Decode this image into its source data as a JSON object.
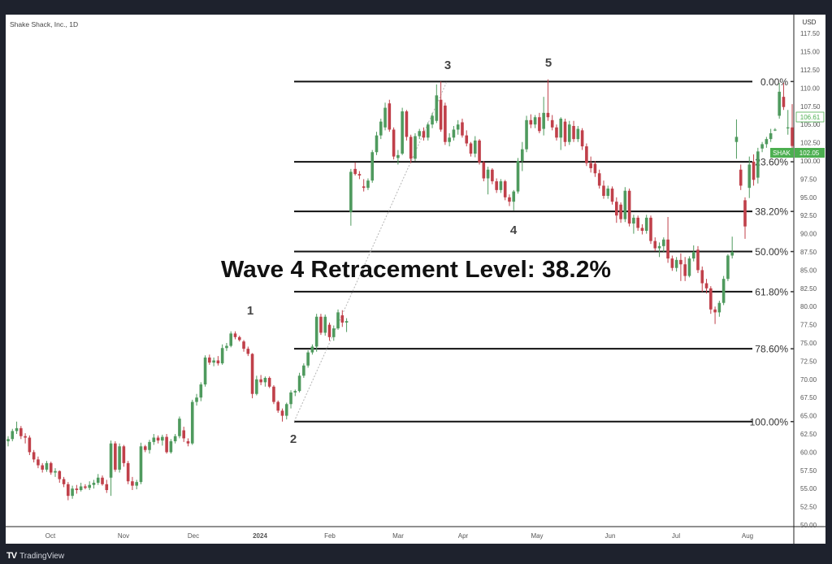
{
  "header": {
    "symbol_title": "Shake Shack, Inc., 1D",
    "currency": "USD"
  },
  "footer": {
    "brand": "TradingView",
    "logo": "TV"
  },
  "chart_data": {
    "type": "candlestick",
    "title": "Shake Shack, Inc., 1D",
    "ylabel": "USD",
    "ylim": [
      50,
      118
    ],
    "grid": false,
    "x_ticks": [
      "Oct",
      "Nov",
      "Dec",
      "2024",
      "Feb",
      "Mar",
      "Apr",
      "May",
      "Jun",
      "Jul",
      "Aug"
    ],
    "y_ticks": [
      "50.00",
      "52.50",
      "55.00",
      "57.50",
      "60.00",
      "62.50",
      "65.00",
      "67.50",
      "70.00",
      "72.50",
      "75.00",
      "77.50",
      "80.00",
      "82.50",
      "85.00",
      "87.50",
      "90.00",
      "92.50",
      "95.00",
      "97.50",
      "100.00",
      "102.50",
      "105.00",
      "107.50",
      "110.00",
      "112.50",
      "115.00",
      "117.50"
    ],
    "colors": {
      "up": "#4f9a5e",
      "down": "#c0404a",
      "fib_line": "#111111",
      "trend_line": "#b0b0b0",
      "price_label": "#4caf50"
    },
    "ohlc_columns": [
      "open",
      "high",
      "low",
      "close"
    ],
    "candles": [
      [
        61.5,
        62.2,
        60.8,
        61.8
      ],
      [
        61.8,
        63.2,
        61.5,
        62.9
      ],
      [
        62.9,
        64.2,
        62.5,
        63.3
      ],
      [
        63.3,
        63.6,
        61.8,
        62.2
      ],
      [
        62.2,
        62.6,
        61.2,
        62.0
      ],
      [
        62,
        62.3,
        59.6,
        60.0
      ],
      [
        60,
        60.3,
        58.6,
        59.0
      ],
      [
        59,
        59.4,
        57.8,
        58.2
      ],
      [
        58.2,
        58.5,
        57.2,
        57.6
      ],
      [
        57.6,
        58.8,
        57.3,
        58.5
      ],
      [
        58.5,
        58.7,
        56.9,
        57.2
      ],
      [
        57.2,
        57.8,
        56.6,
        57.4
      ],
      [
        57.4,
        57.5,
        55.8,
        56.3
      ],
      [
        56.3,
        56.6,
        55.2,
        55.6
      ],
      [
        55.6,
        55.9,
        53.4,
        54.0
      ],
      [
        54.0,
        55.4,
        53.6,
        55.0
      ],
      [
        55,
        55.5,
        54.3,
        54.8
      ],
      [
        54.8,
        55.8,
        54.6,
        55.3
      ],
      [
        55.3,
        55.6,
        54.9,
        55.1
      ],
      [
        55.1,
        56,
        54.8,
        55.5
      ],
      [
        55.5,
        56.2,
        55,
        55.8
      ],
      [
        55.8,
        57,
        55.5,
        56.5
      ],
      [
        56.5,
        56.8,
        55.4,
        55.6
      ],
      [
        55.6,
        56.2,
        54.4,
        54.8
      ],
      [
        56.5,
        61.6,
        54.0,
        61.2
      ],
      [
        61.2,
        61.5,
        57.3,
        57.6
      ],
      [
        57.6,
        61.2,
        57.2,
        60.8
      ],
      [
        60.8,
        61.0,
        58.0,
        58.5
      ],
      [
        58.5,
        58.8,
        55.6,
        56.0
      ],
      [
        56.0,
        56.6,
        54.8,
        55.4
      ],
      [
        55.4,
        56.2,
        54.9,
        55.9
      ],
      [
        55.9,
        61.3,
        55.6,
        60.8
      ],
      [
        60.8,
        61.0,
        60.0,
        60.3
      ],
      [
        60.3,
        61.7,
        59.8,
        61.4
      ],
      [
        61.4,
        62.5,
        61,
        62.0
      ],
      [
        62,
        62.3,
        61.2,
        61.6
      ],
      [
        61.6,
        62.4,
        60.9,
        62.1
      ],
      [
        62.1,
        62.5,
        59.8,
        60.0
      ],
      [
        60,
        61.8,
        59.8,
        61.5
      ],
      [
        61.5,
        62.5,
        61.2,
        62.2
      ],
      [
        62.2,
        64.9,
        61.9,
        64.6
      ],
      [
        63.0,
        63.5,
        61.4,
        61.9
      ],
      [
        61.5,
        61.9,
        60.8,
        61.2
      ],
      [
        61.2,
        67.2,
        61.0,
        66.9
      ],
      [
        66.9,
        68.0,
        66.4,
        67.5
      ],
      [
        67.5,
        69.6,
        67.0,
        69.3
      ],
      [
        69.3,
        73.3,
        69.0,
        73.0
      ],
      [
        73.0,
        73.4,
        72.0,
        72.3
      ],
      [
        72.3,
        73.0,
        71.8,
        72.6
      ],
      [
        72.6,
        73.2,
        71.9,
        72.2
      ],
      [
        72.2,
        74.8,
        72.0,
        74.3
      ],
      [
        74.3,
        75.0,
        73.9,
        74.6
      ],
      [
        74.6,
        76.6,
        74.4,
        76.3
      ],
      [
        76.3,
        76.6,
        75.5,
        75.8
      ],
      [
        75.8,
        76,
        75.2,
        75.4
      ],
      [
        75.2,
        75.4,
        73.8,
        74.2
      ],
      [
        74.2,
        74.5,
        73.2,
        73.5
      ],
      [
        73.5,
        73.6,
        67.4,
        68.0
      ],
      [
        68,
        70.5,
        67.8,
        70.0
      ],
      [
        70.0,
        70.6,
        69.2,
        69.6
      ],
      [
        69.6,
        70.4,
        69.0,
        70.2
      ],
      [
        70.2,
        70.4,
        68.8,
        69.0
      ],
      [
        69,
        69.2,
        66.6,
        66.9
      ],
      [
        66.9,
        67.1,
        65.4,
        65.7
      ],
      [
        65.7,
        66,
        64.2,
        65.0
      ],
      [
        65,
        66.8,
        64.5,
        66.6
      ],
      [
        66.6,
        68.5,
        66.0,
        68.2
      ],
      [
        68.2,
        68.6,
        67.7,
        68.4
      ],
      [
        68.4,
        70.9,
        68.2,
        70.5
      ],
      [
        70.5,
        72.2,
        70.2,
        71.9
      ],
      [
        71.9,
        74.0,
        71.6,
        73.7
      ],
      [
        73.7,
        74.8,
        73.4,
        74.5
      ],
      [
        74.5,
        79.0,
        73.8,
        78.6
      ],
      [
        78.6,
        79.0,
        76.1,
        76.4
      ],
      [
        76.4,
        78.9,
        76.0,
        78.6
      ],
      [
        77.5,
        77.8,
        75.3,
        75.8
      ],
      [
        75.8,
        77.4,
        75.3,
        77.0
      ],
      [
        77,
        79.6,
        76.8,
        79.2
      ],
      [
        78.8,
        79.5,
        77.2,
        77.8
      ],
      [
        77.8,
        78.4,
        76.5,
        78.0
      ],
      [
        93.0,
        98.9,
        91.1,
        98.5
      ],
      [
        98.9,
        99.8,
        98.0,
        98.2
      ],
      [
        98.2,
        98.6,
        97.5,
        98.0
      ],
      [
        96.5,
        97.5,
        95.8,
        96.3
      ],
      [
        96.3,
        97.6,
        96,
        97.3
      ],
      [
        97.3,
        101.5,
        97.0,
        101.2
      ],
      [
        101.2,
        104.0,
        100.8,
        103.5
      ],
      [
        103.5,
        105.8,
        103.0,
        105.4
      ],
      [
        104.6,
        108.0,
        104.2,
        107.3
      ],
      [
        107.9,
        108.4,
        104.0,
        104.3
      ],
      [
        104.3,
        104.6,
        100.2,
        100.6
      ],
      [
        100.4,
        101.5,
        99.5,
        100.8
      ],
      [
        101,
        107.3,
        100.8,
        106.8
      ],
      [
        106.8,
        107.0,
        102.8,
        103.3
      ],
      [
        103.3,
        103.6,
        99.7,
        100.3
      ],
      [
        100.3,
        103.8,
        100,
        103.4
      ],
      [
        103.4,
        104.4,
        103,
        104.1
      ],
      [
        104.1,
        104.6,
        102.8,
        103.2
      ],
      [
        103.2,
        105.3,
        102.8,
        105
      ],
      [
        105,
        106.6,
        104.5,
        106.2
      ],
      [
        105.5,
        110.5,
        105.2,
        109.0
      ],
      [
        108.4,
        110.9,
        104.0,
        104.3
      ],
      [
        107.6,
        108.0,
        102.2,
        102.6
      ],
      [
        102.6,
        103.8,
        102,
        103.2
      ],
      [
        103.2,
        104.8,
        102.8,
        104.3
      ],
      [
        104.3,
        105.6,
        103.6,
        105.0
      ],
      [
        105.3,
        105.8,
        103.2,
        103.5
      ],
      [
        103.5,
        104.2,
        102.0,
        102.4
      ],
      [
        102.4,
        102.6,
        100.6,
        101.0
      ],
      [
        101.0,
        103.4,
        100.5,
        102.8
      ],
      [
        102.8,
        103.0,
        99.5,
        99.8
      ],
      [
        99.8,
        100,
        97.2,
        97.6
      ],
      [
        97.6,
        99.2,
        95.4,
        98.8
      ],
      [
        98.8,
        99.0,
        96.8,
        97.2
      ],
      [
        97.2,
        97.6,
        95.6,
        96.0
      ],
      [
        96,
        97.5,
        95.6,
        97.2
      ],
      [
        97.2,
        97.4,
        94.6,
        95.0
      ],
      [
        95,
        95.4,
        93.8,
        94.4
      ],
      [
        94.4,
        96.0,
        93.2,
        95.8
      ],
      [
        95.8,
        100.4,
        95.5,
        100.0
      ],
      [
        100,
        102.6,
        98.6,
        101.6
      ],
      [
        101.6,
        106.2,
        101.2,
        105.6
      ],
      [
        105.6,
        106.4,
        104.5,
        105.0
      ],
      [
        105,
        106.3,
        104.5,
        106.0
      ],
      [
        106.0,
        106.6,
        103.8,
        104.1
      ],
      [
        104.4,
        108.8,
        103.5,
        106.6
      ],
      [
        106.6,
        111.2,
        105.5,
        106.0
      ],
      [
        105.6,
        106.3,
        104.2,
        104.6
      ],
      [
        104.6,
        105,
        102.8,
        103.2
      ],
      [
        103.2,
        106.0,
        101.5,
        105.8
      ],
      [
        105.4,
        105.8,
        102,
        102.6
      ],
      [
        102.6,
        105.5,
        102.2,
        105
      ],
      [
        104.8,
        105.5,
        102.6,
        103.0
      ],
      [
        103.0,
        104.8,
        102.6,
        104.4
      ],
      [
        104.2,
        104.5,
        101.5,
        102.0
      ],
      [
        102,
        102.4,
        99.3,
        99.7
      ],
      [
        99.7,
        100.6,
        98.4,
        99.0
      ],
      [
        99.6,
        100,
        97.8,
        98.3
      ],
      [
        98.3,
        98.8,
        96.2,
        96.6
      ],
      [
        96.6,
        97.3,
        94.8,
        95.2
      ],
      [
        95.2,
        96.6,
        94.8,
        96.2
      ],
      [
        96.2,
        96.5,
        94,
        94.4
      ],
      [
        94.4,
        95.0,
        91.5,
        92.5
      ],
      [
        94,
        94.3,
        91.5,
        92.0
      ],
      [
        92,
        96.4,
        91.6,
        95.9
      ],
      [
        95.9,
        96.2,
        91.0,
        91.4
      ],
      [
        91.4,
        92.6,
        90,
        92.2
      ],
      [
        92.2,
        92.5,
        90.4,
        90.8
      ],
      [
        90.8,
        91.3,
        89.9,
        90.4
      ],
      [
        90.4,
        92.6,
        90,
        92.2
      ],
      [
        92.2,
        92.5,
        88.6,
        89.0
      ],
      [
        89,
        89.5,
        87.6,
        88.0
      ],
      [
        88,
        88.8,
        86.8,
        88.3
      ],
      [
        88.3,
        89.5,
        87.5,
        89.2
      ],
      [
        89.2,
        92.3,
        86,
        86.6
      ],
      [
        86.6,
        87,
        84.9,
        85.3
      ],
      [
        85.3,
        86.8,
        84.8,
        86.4
      ],
      [
        86.4,
        87.3,
        83.5,
        85.8
      ],
      [
        85.8,
        86.8,
        83.5,
        84.2
      ],
      [
        84.2,
        86.9,
        84,
        86.6
      ],
      [
        86.6,
        88.4,
        86.2,
        87.5
      ],
      [
        87.8,
        88.3,
        84.6,
        85.0
      ],
      [
        85,
        85.5,
        82,
        83.2
      ],
      [
        83.2,
        83.8,
        81.8,
        82.5
      ],
      [
        82.5,
        82.8,
        79.0,
        79.6
      ],
      [
        79.6,
        80.0,
        77.6,
        79.2
      ],
      [
        79.2,
        80.8,
        78.6,
        80.5
      ],
      [
        80.5,
        84.2,
        80.2,
        83.8
      ],
      [
        83.8,
        87.2,
        83.5,
        87.0
      ],
      [
        87,
        89.6,
        86.6,
        87.5
      ],
      [
        102.6,
        105.7,
        100.3,
        103.3
      ],
      [
        98.8,
        99.5,
        96,
        96.6
      ],
      [
        94.6,
        95,
        89.3,
        91
      ],
      [
        96.3,
        100.6,
        94.9,
        99.5
      ],
      [
        99.9,
        100.9,
        96.6,
        97.4
      ],
      [
        97.7,
        101.8,
        96.9,
        101.3
      ],
      [
        101.7,
        102.6,
        101.2,
        102.3
      ],
      [
        102.3,
        103.3,
        101.8,
        103.0
      ],
      [
        103,
        104.4,
        102.6,
        103.8
      ],
      [
        104.3,
        104.5,
        104.1,
        104.3
      ],
      [
        106.2,
        110.7,
        105.8,
        109.5
      ],
      [
        108.8,
        110.7,
        107,
        107.4
      ],
      [
        104.5,
        107,
        103.6,
        104.6
      ],
      [
        104.6,
        107.8,
        101.0,
        102.05
      ]
    ],
    "fib_levels": [
      {
        "label": "0.00%",
        "price": 110.9
      },
      {
        "label": "23.60%",
        "price": 99.88
      },
      {
        "label": "38.20%",
        "price": 93.06
      },
      {
        "label": "50.00%",
        "price": 87.55
      },
      {
        "label": "61.80%",
        "price": 82.04
      },
      {
        "label": "78.60%",
        "price": 74.2
      },
      {
        "label": "100.00%",
        "price": 64.2
      }
    ],
    "waves": [
      {
        "label": "1",
        "price": 76.6
      },
      {
        "label": "2",
        "price": 64.2
      },
      {
        "label": "3",
        "price": 110.9
      },
      {
        "label": "4",
        "price": 93.2
      },
      {
        "label": "5",
        "price": 111.2
      }
    ],
    "annotation": "Wave 4 Retracement Level: 38.2%",
    "price_labels": {
      "high_marker": "106.61",
      "symbol": "SHAK",
      "last_price": "102.05"
    }
  }
}
